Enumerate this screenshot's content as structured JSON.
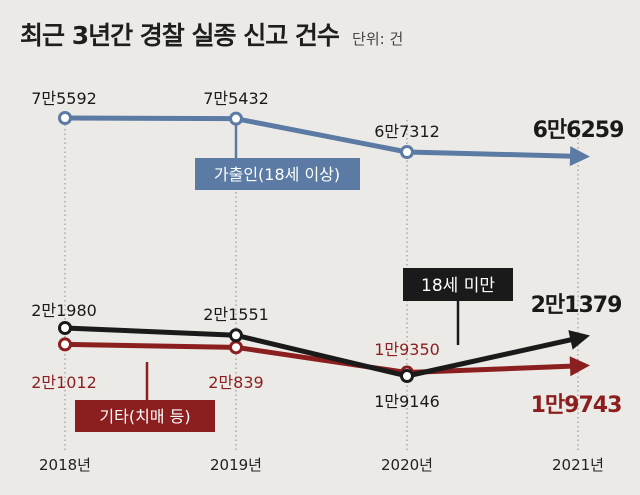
{
  "title": "최근 3년간 경찰 실종 신고 건수",
  "unit": "단위: 건",
  "chart_data": {
    "type": "line",
    "categories": [
      "2018년",
      "2019년",
      "2020년",
      "2021년"
    ],
    "series": [
      {
        "name": "가출인(18세 이상)",
        "values": [
          75592,
          75432,
          67312,
          66259
        ],
        "labels": [
          "7만5592",
          "7만5432",
          "6만7312",
          "6만6259"
        ],
        "color": "#5b7ba4"
      },
      {
        "name": "18세 미만",
        "values": [
          21980,
          21551,
          19146,
          21379
        ],
        "labels": [
          "2만1980",
          "2만1551",
          "1만9146",
          "2만1379"
        ],
        "color": "#1a1a1a"
      },
      {
        "name": "기타(치매 등)",
        "values": [
          21012,
          20839,
          19350,
          19743
        ],
        "labels": [
          "2만1012",
          "2만839",
          "1만9350",
          "1만9743"
        ],
        "color": "#8b1f1f"
      }
    ],
    "legend": [
      "in-chart-labels"
    ],
    "grid": "vertical-dotted"
  }
}
